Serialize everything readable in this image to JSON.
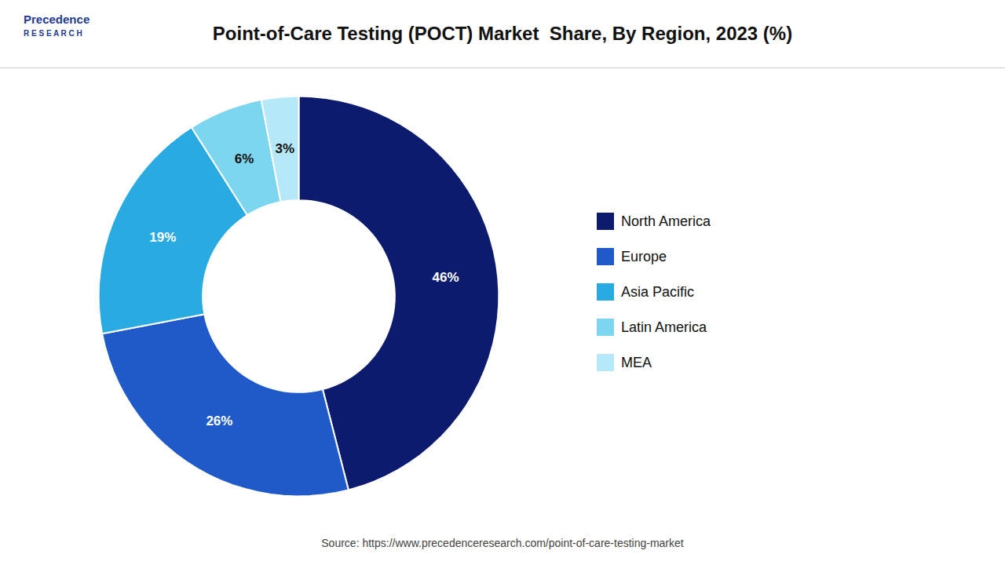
{
  "chart_data": {
    "type": "pie",
    "title": "Point-of-Care Testing (POCT) Market  Share, By Region, 2023 (%)",
    "categories": [
      "North America",
      "Europe",
      "Asia Pacific",
      "Latin America",
      "MEA"
    ],
    "values": [
      46,
      26,
      19,
      6,
      3
    ],
    "value_labels": [
      "46%",
      "26%",
      "19%",
      "6%",
      "3%"
    ],
    "colors": [
      "#0d1b6e",
      "#1f5ac8",
      "#29aae1",
      "#7dd6f0",
      "#b5e8f8"
    ],
    "data_labels": true,
    "legend": "right",
    "annotations": [
      "Precedence",
      "R E S E A R C H"
    ],
    "caption": "Source: https://www.precedenceresearch.com/point-of-care-testing-market"
  }
}
